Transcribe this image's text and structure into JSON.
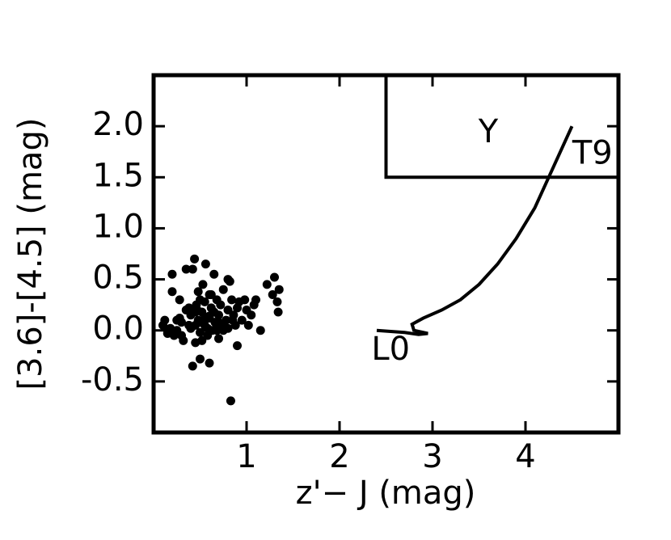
{
  "chart_data": {
    "type": "scatter",
    "xlabel": "z'− J (mag)",
    "ylabel": "[3.6]-[4.5] (mag)",
    "xlim": [
      0,
      5
    ],
    "ylim": [
      -1,
      2.5
    ],
    "xticks": [
      1,
      2,
      3,
      4
    ],
    "yticks": [
      {
        "value": 2.0,
        "label": "2.0"
      },
      {
        "value": 1.5,
        "label": "1.5"
      },
      {
        "value": 1.0,
        "label": "1.0"
      },
      {
        "value": 0.5,
        "label": "0.5"
      },
      {
        "value": 0.0,
        "label": "0.0"
      },
      {
        "value": -0.5,
        "label": "-0.5"
      }
    ],
    "color": "#000000",
    "points": {
      "x": [
        0.1,
        0.12,
        0.15,
        0.18,
        0.2,
        0.22,
        0.25,
        0.28,
        0.3,
        0.32,
        0.35,
        0.38,
        0.4,
        0.42,
        0.44,
        0.45,
        0.46,
        0.48,
        0.5,
        0.5,
        0.52,
        0.53,
        0.55,
        0.56,
        0.58,
        0.6,
        0.6,
        0.62,
        0.63,
        0.65,
        0.66,
        0.68,
        0.7,
        0.7,
        0.72,
        0.74,
        0.75,
        0.78,
        0.8,
        0.8,
        0.82,
        0.84,
        0.86,
        0.88,
        0.9,
        0.92,
        0.95,
        0.98,
        1.0,
        1.02,
        1.05,
        1.08,
        1.1,
        1.15,
        1.22,
        1.28,
        1.3,
        1.33,
        1.35,
        1.34,
        0.15,
        0.2,
        0.3,
        0.38,
        0.42,
        0.45,
        0.48,
        0.5,
        0.55,
        0.6,
        0.65,
        0.7,
        0.75,
        0.8,
        0.85,
        0.9,
        0.4,
        0.45,
        0.5,
        0.55,
        0.58,
        0.6,
        0.35,
        0.28,
        0.52,
        0.47,
        0.62,
        0.68,
        0.83,
        0.25
      ],
      "y": [
        0.05,
        0.1,
        -0.03,
        0.02,
        0.38,
        -0.05,
        0.0,
        0.12,
        0.08,
        -0.1,
        0.2,
        0.05,
        0.15,
        0.6,
        0.7,
        -0.12,
        0.25,
        0.1,
        0.3,
        -0.02,
        0.18,
        0.45,
        0.05,
        0.65,
        -0.05,
        0.12,
        0.35,
        0.22,
        0.0,
        0.55,
        0.08,
        0.3,
        0.15,
        -0.08,
        0.25,
        0.05,
        0.4,
        0.1,
        0.2,
        0.02,
        0.48,
        0.3,
        0.15,
        0.05,
        0.22,
        0.28,
        0.1,
        0.3,
        0.2,
        0.05,
        0.15,
        0.25,
        0.3,
        0.0,
        0.45,
        0.35,
        0.52,
        0.28,
        0.4,
        0.18,
        0.0,
        0.55,
        -0.05,
        0.22,
        -0.35,
        0.05,
        0.38,
        -0.28,
        0.12,
        -0.32,
        0.18,
        0.08,
        0.0,
        0.5,
        0.1,
        -0.15,
        0.02,
        0.18,
        0.08,
        0.28,
        0.02,
        0.14,
        0.6,
        0.3,
        -0.1,
        0.2,
        0.35,
        0.0,
        -0.69,
        0.1
      ]
    },
    "lines": [
      {
        "x": [
          2.5,
          2.5,
          5
        ],
        "y": [
          2.5,
          1.5,
          1.5
        ]
      },
      {
        "x": [
          2.4,
          2.7,
          2.85,
          2.95,
          2.8,
          2.78,
          2.9,
          3.1,
          3.3,
          3.5,
          3.7,
          3.9,
          4.1,
          4.25,
          4.4,
          4.5
        ],
        "y": [
          0.0,
          -0.02,
          -0.04,
          -0.03,
          0.0,
          0.06,
          0.12,
          0.2,
          0.3,
          0.45,
          0.65,
          0.9,
          1.2,
          1.5,
          1.8,
          2.0
        ]
      }
    ],
    "annotations": [
      {
        "text": "Y",
        "x": 3.6,
        "y": 1.93
      },
      {
        "text": "T9",
        "x": 4.72,
        "y": 1.72
      },
      {
        "text": "L0",
        "x": 2.55,
        "y": -0.2
      }
    ]
  }
}
